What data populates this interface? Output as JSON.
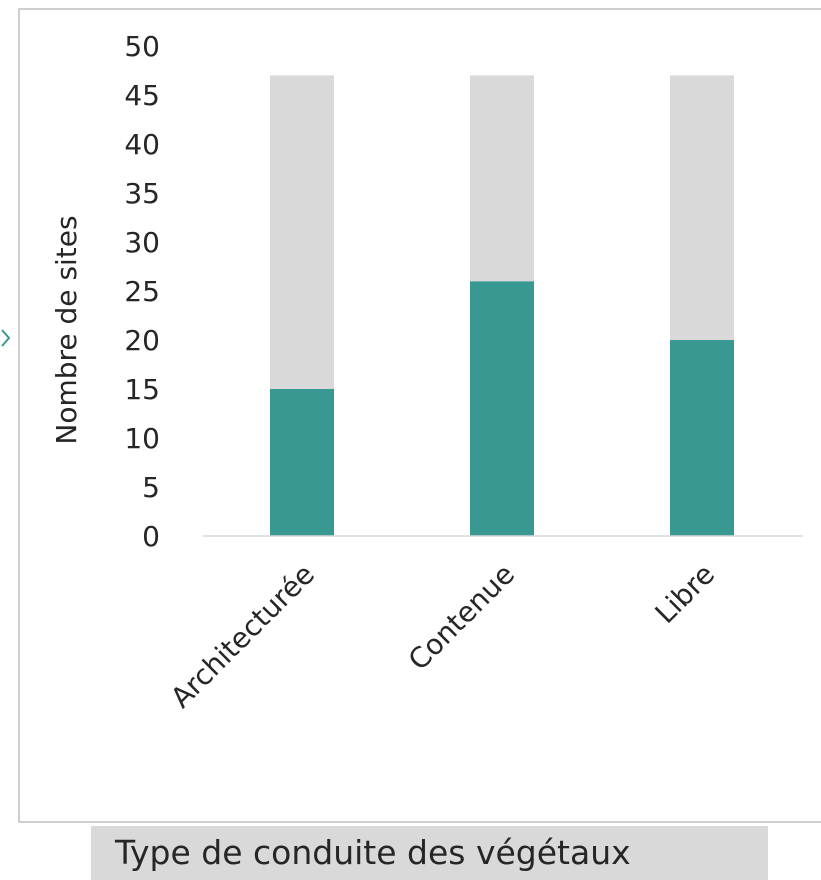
{
  "chart_data": {
    "type": "bar",
    "stacked": true,
    "categories": [
      "Architecturée",
      "Contenue",
      "Libre"
    ],
    "series": [
      {
        "values": [
          15,
          26,
          20
        ],
        "color": "#3a9893"
      },
      {
        "values": [
          32,
          21,
          27
        ],
        "color": "#d9d9d9"
      }
    ],
    "totals": [
      47,
      47,
      47
    ],
    "xlabel": "Type de conduite des végétaux",
    "ylabel": "Nombre de sites",
    "ylim": [
      0,
      50
    ],
    "yticks": [
      0,
      5,
      10,
      15,
      20,
      25,
      30,
      35,
      40,
      45,
      50
    ],
    "grid": false,
    "legend": "none"
  },
  "colors": {
    "accent": "#3a9893",
    "remainder": "#d9d9d9",
    "frame": "#bfbfbf",
    "axis": "#d9d9d9",
    "text": "#262626"
  }
}
